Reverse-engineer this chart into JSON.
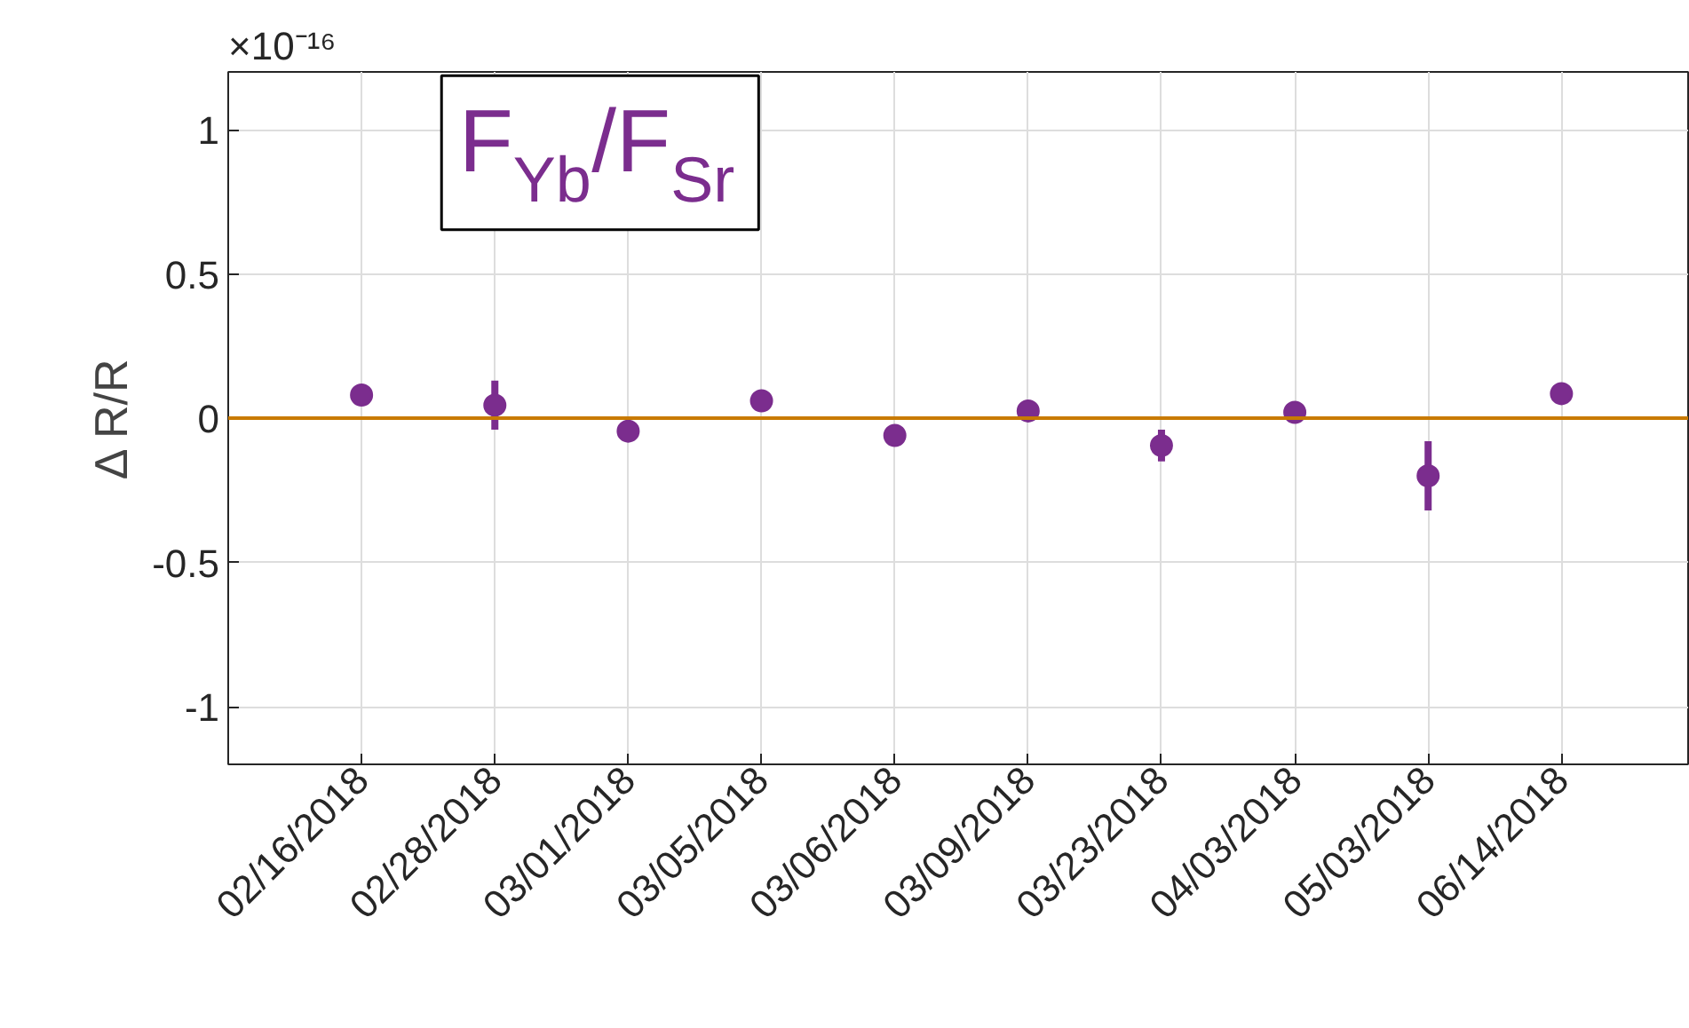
{
  "chart_data": {
    "type": "scatter",
    "title": "F$_{Yb}$/F$_{Sr}$",
    "ylabel": "Δ R/R",
    "annotations": [
      "×10⁻¹⁶"
    ],
    "categories": [
      "02/16/2018",
      "02/28/2018",
      "03/01/2018",
      "03/05/2018",
      "03/06/2018",
      "03/09/2018",
      "03/23/2018",
      "04/03/2018",
      "05/03/2018",
      "06/14/2018"
    ],
    "series": [
      {
        "color": "#7b2d8e",
        "values": [
          0.08,
          0.045,
          -0.045,
          0.06,
          -0.06,
          0.025,
          -0.095,
          0.02,
          -0.2,
          0.085
        ],
        "errors": [
          null,
          0.085,
          null,
          null,
          null,
          null,
          0.055,
          null,
          0.12,
          null
        ]
      }
    ],
    "ylim": [
      -1.2,
      1.2
    ],
    "yticks": [
      -1,
      -0.5,
      0,
      0.5,
      1
    ],
    "ref_lines": [
      {
        "axis": "y",
        "value": 0,
        "color": "#c87a00"
      }
    ],
    "grid": true,
    "marker": "circle"
  }
}
